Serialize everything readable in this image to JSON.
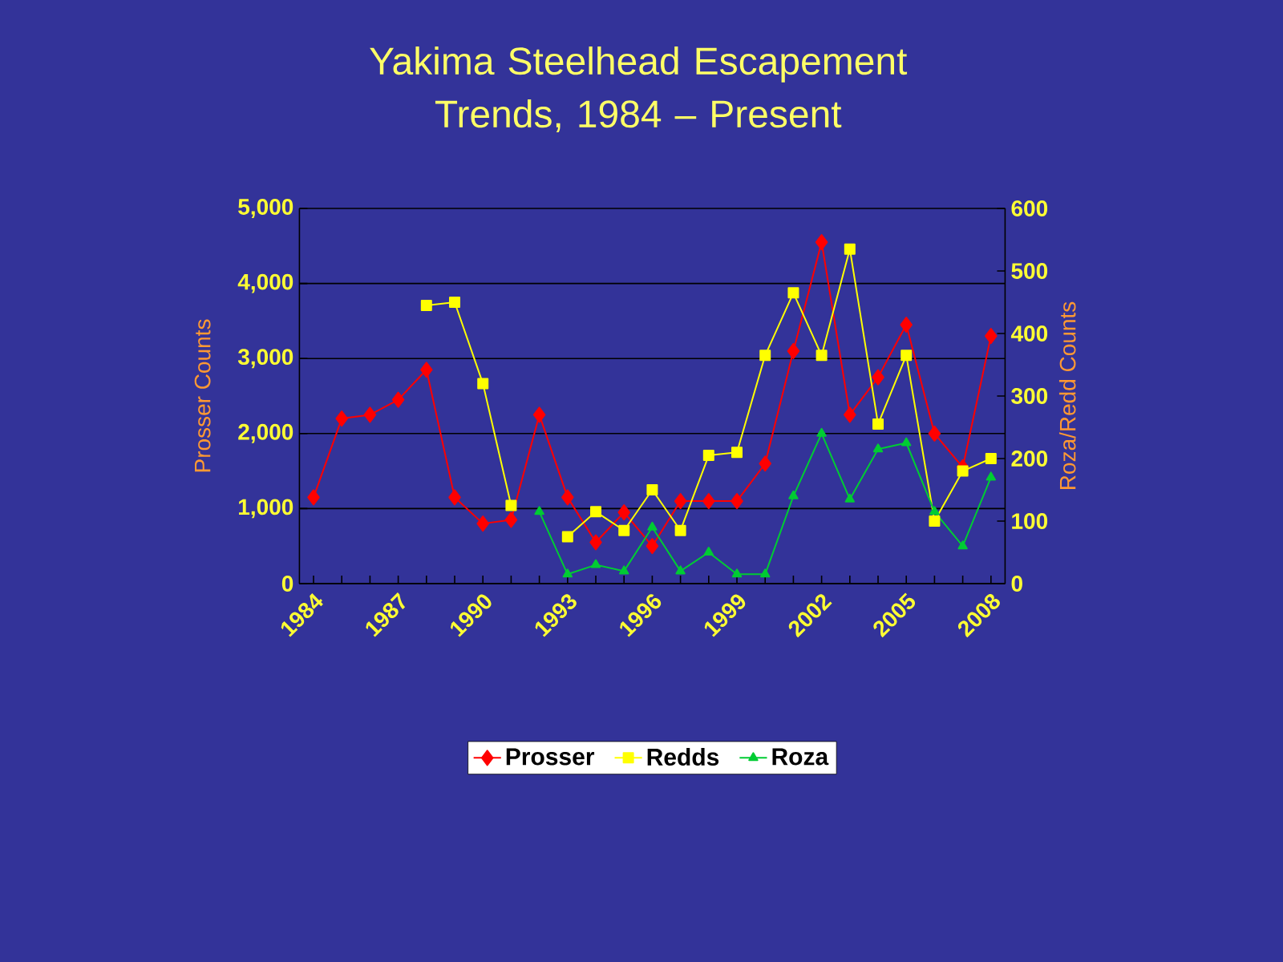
{
  "chart_data": {
    "type": "line",
    "title": "Yakima Steelhead Escapement Trends, 1984 – Present",
    "ylabel": "Prosser Counts",
    "y2label": "Roza/Redd Counts",
    "categories": [
      "1984",
      null,
      null,
      "1987",
      null,
      null,
      "1990",
      null,
      null,
      "1993",
      null,
      null,
      "1996",
      null,
      null,
      "1999",
      null,
      null,
      "2002",
      null,
      null,
      "2005",
      null,
      null,
      "2008"
    ],
    "ylim": [
      0,
      5000
    ],
    "yticks": [
      0,
      {
        "value": 1000,
        "label": "1,000"
      },
      {
        "value": 2000,
        "label": "2,000"
      },
      {
        "value": 3000,
        "label": "3,000"
      },
      {
        "value": 4000,
        "label": "4,000"
      },
      {
        "value": 5000,
        "label": "5,000"
      }
    ],
    "y2lim": [
      0,
      600
    ],
    "y2ticks": [
      0,
      100,
      200,
      300,
      400,
      500,
      600
    ],
    "grid": "y",
    "legend": "bottom",
    "series": [
      {
        "name": "Prosser",
        "color": "#ff0000",
        "marker": "diamond",
        "values": [
          1150,
          2200,
          2250,
          2450,
          2850,
          1150,
          800,
          850,
          2250,
          1150,
          550,
          950,
          500,
          1100,
          1100,
          1100,
          1600,
          3100,
          4550,
          2250,
          2750,
          3450,
          2000,
          1550,
          3300
        ]
      },
      {
        "name": "Redds",
        "color": "#ffff00",
        "marker": "square",
        "axis": "y2",
        "values": [
          null,
          null,
          null,
          null,
          445,
          450,
          320,
          125,
          null,
          75,
          115,
          85,
          150,
          85,
          205,
          210,
          365,
          465,
          365,
          535,
          255,
          365,
          100,
          180,
          200
        ]
      },
      {
        "name": "Roza",
        "color": "#00cc33",
        "marker": "triangle",
        "axis": "y2",
        "values": [
          null,
          null,
          null,
          null,
          null,
          null,
          null,
          null,
          115,
          15,
          30,
          20,
          90,
          20,
          50,
          15,
          15,
          140,
          240,
          135,
          215,
          225,
          115,
          60,
          170
        ]
      }
    ]
  }
}
